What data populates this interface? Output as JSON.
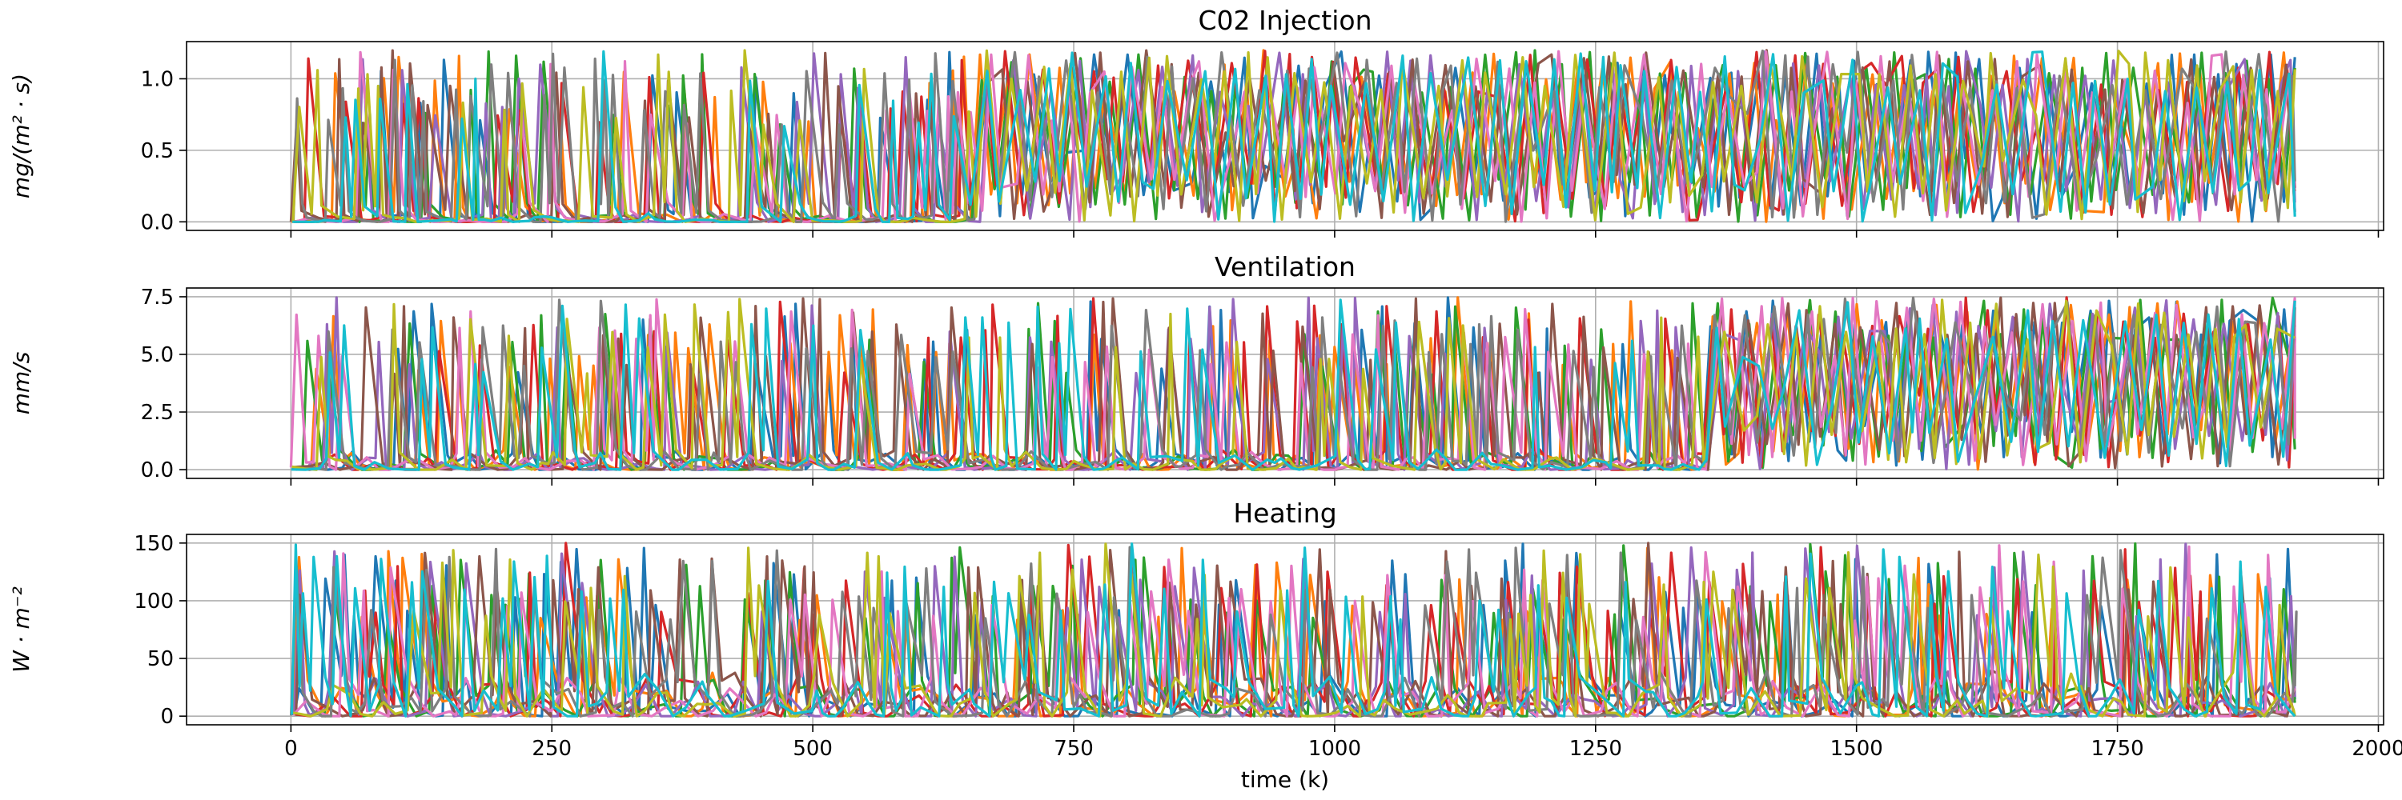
{
  "chart_data": [
    {
      "type": "line",
      "title": "C02 Injection",
      "ylabel": "mg/(m² · s)",
      "xlabel": "",
      "xlim": [
        -100,
        2005
      ],
      "ylim": [
        -0.06,
        1.26
      ],
      "xticks": [
        0,
        250,
        500,
        750,
        1000,
        1250,
        1500,
        1750,
        2000
      ],
      "yticks": [
        0.0,
        0.5,
        1.0
      ],
      "ytick_labels": [
        "0.0",
        "0.5",
        "1.0"
      ],
      "show_xtick_labels": false,
      "grid": true,
      "signal": {
        "x_range": [
          0,
          1920
        ],
        "min": 0.0,
        "max": 1.2,
        "segments": [
          {
            "x_start": 0,
            "x_end": 650,
            "activity": "sparse spikes"
          },
          {
            "x_start": 650,
            "x_end": 1920,
            "activity": "dense daily cycles 0 to 1.2"
          }
        ]
      },
      "series": [
        {
          "color": "#1f77b4"
        },
        {
          "color": "#ff7f0e"
        },
        {
          "color": "#2ca02c"
        },
        {
          "color": "#d62728"
        },
        {
          "color": "#9467bd"
        },
        {
          "color": "#8c564b"
        },
        {
          "color": "#e377c2"
        },
        {
          "color": "#7f7f7f"
        },
        {
          "color": "#bcbd22"
        },
        {
          "color": "#17becf"
        }
      ]
    },
    {
      "type": "line",
      "title": "Ventilation",
      "ylabel": "mm/s",
      "xlabel": "",
      "xlim": [
        -100,
        2005
      ],
      "ylim": [
        -0.38,
        7.88
      ],
      "xticks": [
        0,
        250,
        500,
        750,
        1000,
        1250,
        1500,
        1750,
        2000
      ],
      "yticks": [
        0.0,
        2.5,
        5.0,
        7.5
      ],
      "ytick_labels": [
        "0.0",
        "2.5",
        "5.0",
        "7.5"
      ],
      "show_xtick_labels": false,
      "grid": true,
      "signal": {
        "x_range": [
          0,
          1920
        ],
        "min": 0.0,
        "max": 7.5,
        "segments": [
          {
            "x_start": 0,
            "x_end": 1350,
            "activity": "spikes to 7.5, baseline near 0-1"
          },
          {
            "x_start": 1350,
            "x_end": 1920,
            "activity": "dense daily cycles 0 to 7.5"
          }
        ]
      },
      "series": [
        {
          "color": "#1f77b4"
        },
        {
          "color": "#ff7f0e"
        },
        {
          "color": "#2ca02c"
        },
        {
          "color": "#d62728"
        },
        {
          "color": "#9467bd"
        },
        {
          "color": "#8c564b"
        },
        {
          "color": "#e377c2"
        },
        {
          "color": "#7f7f7f"
        },
        {
          "color": "#bcbd22"
        },
        {
          "color": "#17becf"
        }
      ]
    },
    {
      "type": "line",
      "title": "Heating",
      "ylabel": "W · m⁻²",
      "xlabel": "time (k)",
      "xlim": [
        -100,
        2005
      ],
      "ylim": [
        -7.5,
        157.5
      ],
      "xticks": [
        0,
        250,
        500,
        750,
        1000,
        1250,
        1500,
        1750,
        2000
      ],
      "xtick_labels": [
        "0",
        "250",
        "500",
        "750",
        "1000",
        "1250",
        "1500",
        "1750",
        "2000"
      ],
      "yticks": [
        0,
        50,
        100,
        150
      ],
      "ytick_labels": [
        "0",
        "50",
        "100",
        "150"
      ],
      "show_xtick_labels": true,
      "grid": true,
      "signal": {
        "x_range": [
          0,
          1920
        ],
        "min": 0,
        "max": 150,
        "segments": [
          {
            "x_start": 0,
            "x_end": 1920,
            "activity": "spikes to 150, baseline humps 0-40"
          }
        ]
      },
      "series": [
        {
          "color": "#1f77b4"
        },
        {
          "color": "#ff7f0e"
        },
        {
          "color": "#2ca02c"
        },
        {
          "color": "#d62728"
        },
        {
          "color": "#9467bd"
        },
        {
          "color": "#8c564b"
        },
        {
          "color": "#e377c2"
        },
        {
          "color": "#7f7f7f"
        },
        {
          "color": "#bcbd22"
        },
        {
          "color": "#17becf"
        }
      ]
    }
  ]
}
